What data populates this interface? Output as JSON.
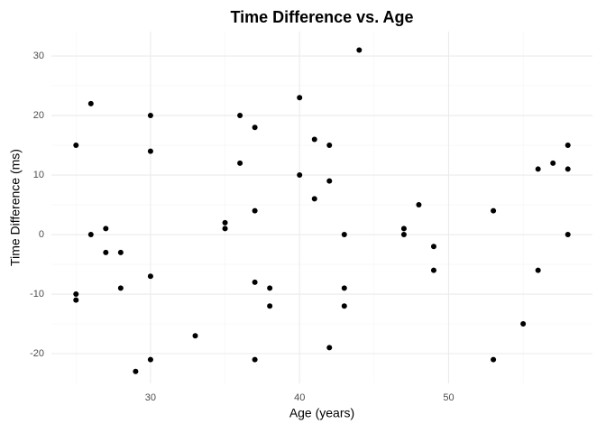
{
  "chart_data": {
    "type": "scatter",
    "title": "Time Difference vs. Age",
    "x_label": "Age (years)",
    "y_label": "Time Difference (ms)",
    "x": [
      25,
      25,
      25,
      26,
      26,
      27,
      27,
      28,
      28,
      29,
      30,
      30,
      30,
      30,
      33,
      35,
      35,
      36,
      36,
      37,
      37,
      37,
      37,
      38,
      38,
      40,
      40,
      41,
      41,
      42,
      42,
      42,
      43,
      43,
      43,
      44,
      47,
      47,
      48,
      49,
      49,
      53,
      53,
      55,
      56,
      56,
      57,
      58,
      58,
      58
    ],
    "y": [
      15,
      -10,
      -11,
      22,
      0,
      1,
      -3,
      -3,
      -9,
      -23,
      20,
      14,
      -7,
      -21,
      -17,
      2,
      1,
      20,
      12,
      18,
      4,
      -8,
      -21,
      -9,
      -12,
      23,
      10,
      16,
      6,
      15,
      9,
      -19,
      0,
      -9,
      -12,
      31,
      1,
      0,
      5,
      -2,
      -6,
      4,
      -21,
      -15,
      11,
      -6,
      12,
      15,
      11,
      0
    ],
    "color": "#000000",
    "xlim": [
      23.35,
      59.65
    ],
    "ylim": [
      -25,
      34.1
    ],
    "xticks": [
      30,
      40,
      50
    ],
    "yticks": [
      -20,
      -10,
      0,
      10,
      20,
      30
    ],
    "x_minor_ticks": [
      25,
      35,
      45,
      55
    ],
    "y_minor_ticks": [
      -15,
      -5,
      5,
      15,
      25
    ],
    "grid": true
  }
}
